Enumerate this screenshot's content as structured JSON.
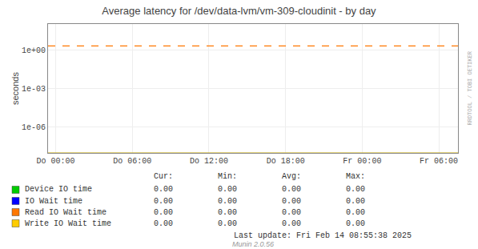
{
  "chart_data": {
    "type": "line",
    "title": "Average latency for /dev/data-lvm/vm-309-cloudinit - by day",
    "ylabel": "seconds",
    "log": "y",
    "grid": true,
    "categories": [
      "Do 00:00",
      "Do 06:00",
      "Do 12:00",
      "Do 18:00",
      "Fr 00:00",
      "Fr 06:00"
    ],
    "ylim": [
      1e-08,
      100
    ],
    "yticks": [
      {
        "value": 1e-06,
        "label": "1e-06"
      },
      {
        "value": 0.001,
        "label": "1e-03"
      },
      {
        "value": 1,
        "label": "1e+00"
      }
    ],
    "series": [
      {
        "name": "Device IO time",
        "color": "#00cc00",
        "values": [
          null,
          null,
          null,
          null,
          null,
          null
        ],
        "table_values": [
          "0.00",
          "0.00",
          "0.00",
          "0.00"
        ]
      },
      {
        "name": "IO Wait time",
        "color": "#0000ff",
        "values": [
          null,
          null,
          null,
          null,
          null,
          null
        ],
        "table_values": [
          "0.00",
          "0.00",
          "0.00",
          "0.00"
        ]
      },
      {
        "name": "Read IO Wait time",
        "color": "#ff7700",
        "values": [
          null,
          null,
          null,
          null,
          null,
          null
        ],
        "table_values": [
          "0.00",
          "0.00",
          "0.00",
          "0.00"
        ]
      },
      {
        "name": "Write IO Wait time",
        "color": "#ffcc00",
        "values": [
          null,
          null,
          null,
          null,
          null,
          null
        ],
        "table_values": [
          "0.00",
          "0.00",
          "0.00",
          "0.00"
        ]
      }
    ],
    "table_headers": [
      "Cur:",
      "Min:",
      "Avg:",
      "Max:"
    ],
    "reference_lines": [
      {
        "y": 2.0,
        "color": "#ff7700",
        "line_style": "dashed"
      },
      {
        "y": 1e-08,
        "color": "#ccaa00",
        "line_style": "solid"
      }
    ],
    "annotations": [
      "Last update: Fri Feb 14 08:55:38 2025",
      "Munin 2.0.56",
      "RRDTOOL / TOBI OETIKER"
    ]
  }
}
